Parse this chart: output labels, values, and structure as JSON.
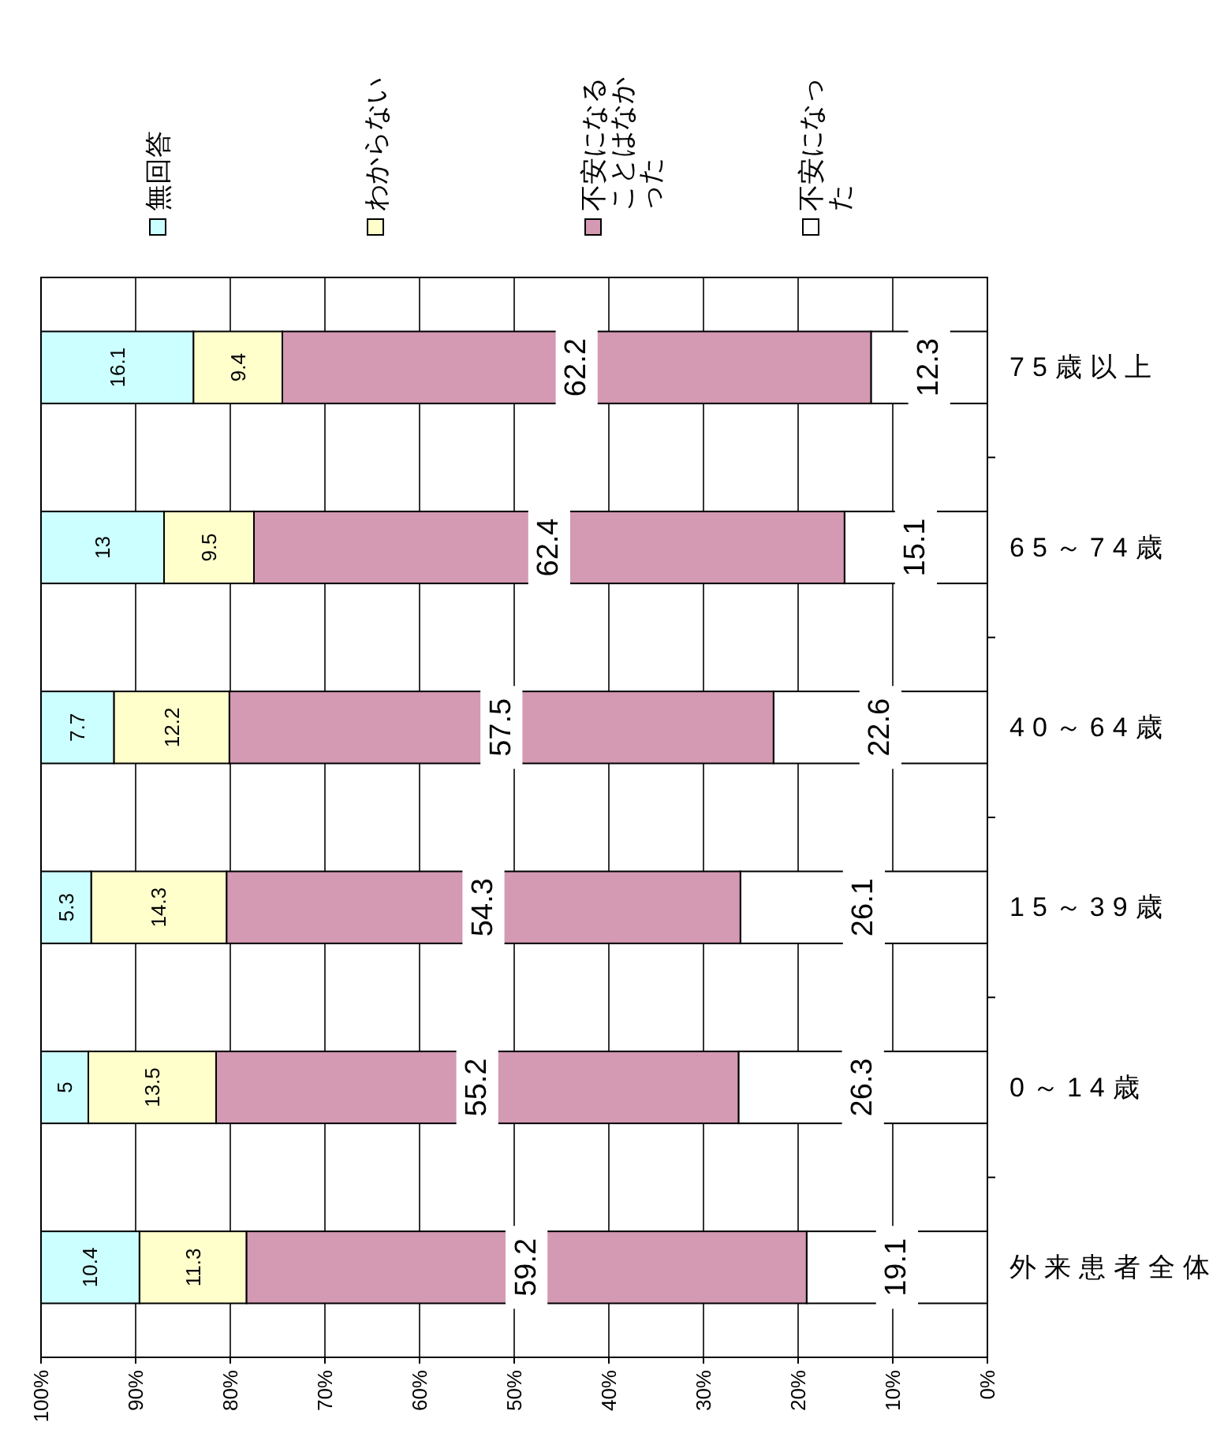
{
  "chart_data": {
    "type": "bar",
    "orientation": "horizontal",
    "stacked": true,
    "categories": [
      "75歳以上",
      "65～74歳",
      "40～64歳",
      "15～39歳",
      "0～14歳",
      "外来患者全体"
    ],
    "series": [
      {
        "name": "不安になった",
        "color": "#ffffff",
        "values": [
          12.3,
          15.1,
          22.6,
          26.1,
          26.3,
          19.1
        ]
      },
      {
        "name": "不安になることはなかった",
        "color": "#d499b3",
        "values": [
          62.2,
          62.4,
          57.5,
          54.3,
          55.2,
          59.2
        ]
      },
      {
        "name": "わからない",
        "color": "#ffffcc",
        "values": [
          9.4,
          9.5,
          12.2,
          14.3,
          13.5,
          11.3
        ]
      },
      {
        "name": "無回答",
        "color": "#ccffff",
        "values": [
          16.1,
          13,
          7.7,
          5.3,
          5,
          10.4
        ]
      }
    ],
    "xlim": [
      100,
      0
    ],
    "xticks": [
      {
        "value": 100,
        "label": "100%"
      },
      {
        "value": 90,
        "label": "90%"
      },
      {
        "value": 80,
        "label": "80%"
      },
      {
        "value": 70,
        "label": "70%"
      },
      {
        "value": 60,
        "label": "60%"
      },
      {
        "value": 50,
        "label": "50%"
      },
      {
        "value": 40,
        "label": "40%"
      },
      {
        "value": 30,
        "label": "30%"
      },
      {
        "value": 20,
        "label": "20%"
      },
      {
        "value": 10,
        "label": "10%"
      },
      {
        "value": 0,
        "label": "0%"
      }
    ],
    "grid": "x",
    "legend": "top",
    "data_labels": true
  }
}
